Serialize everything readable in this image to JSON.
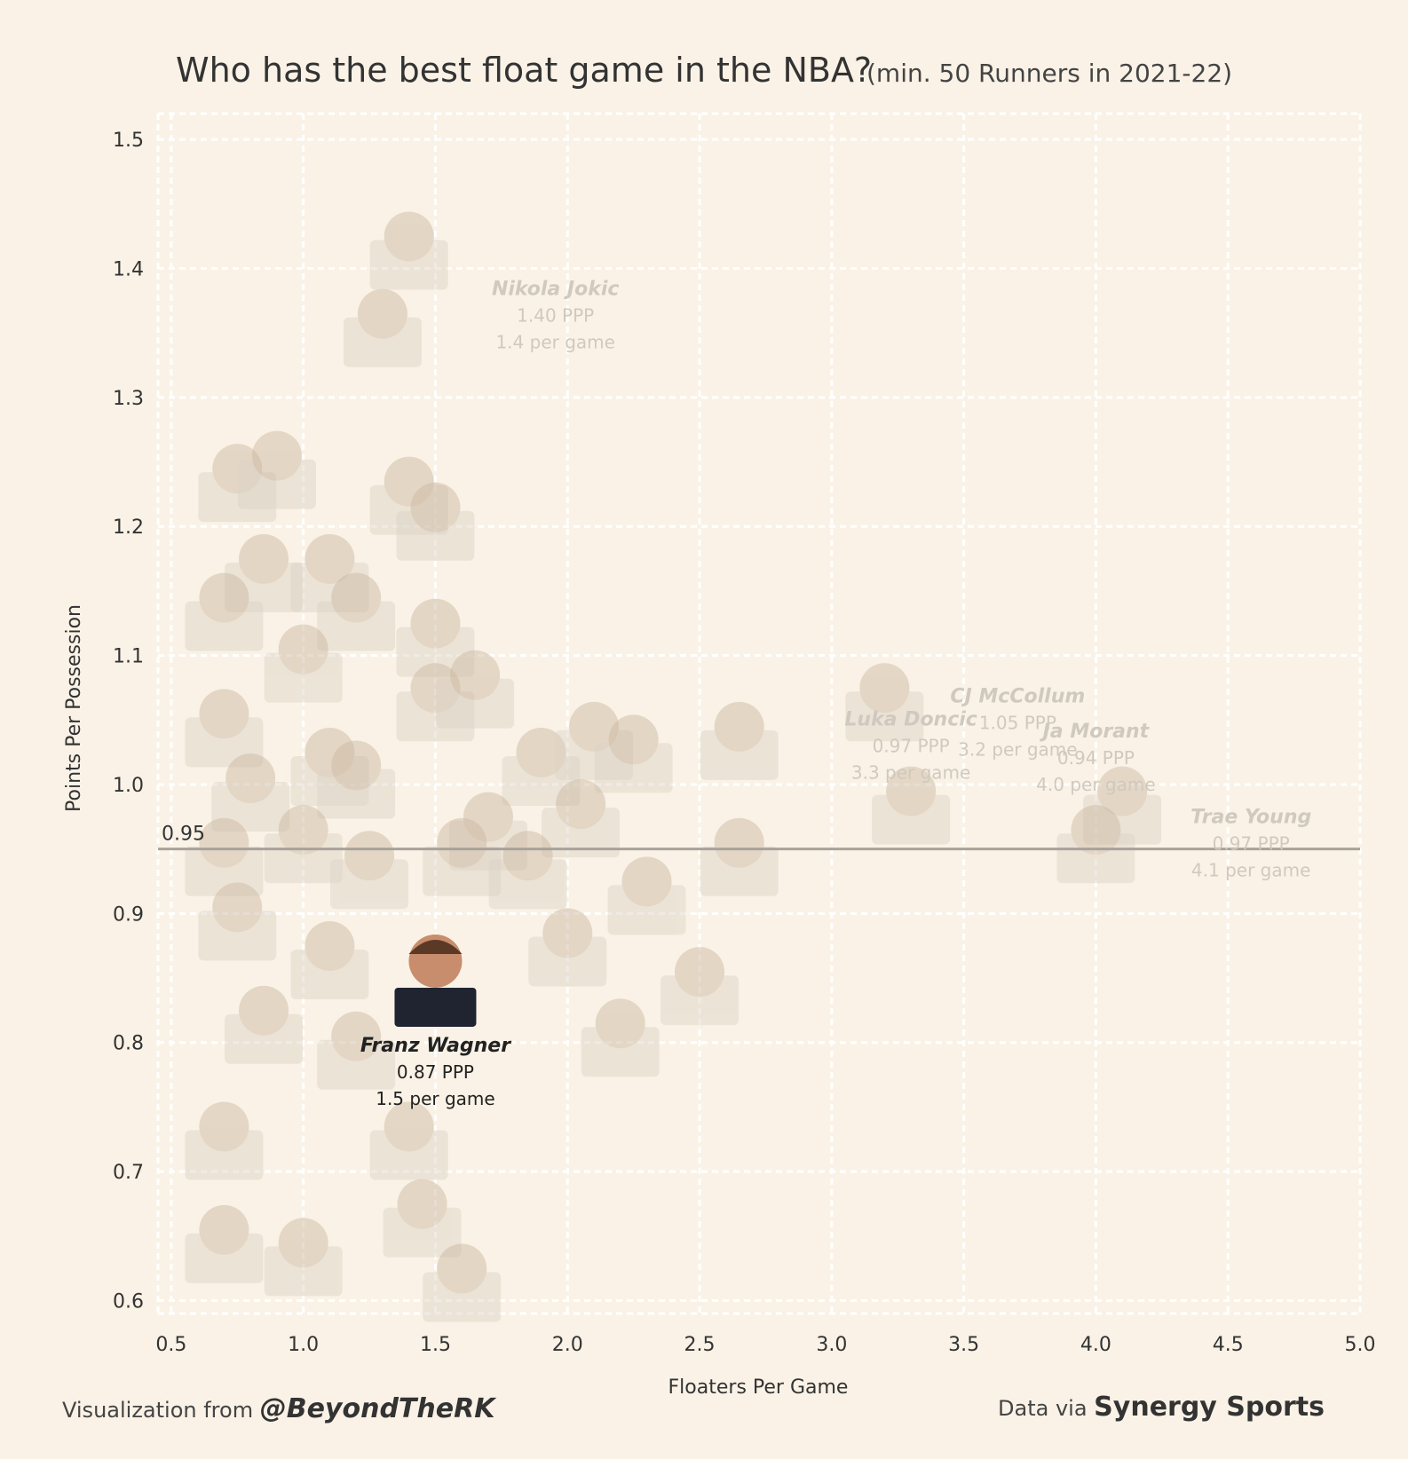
{
  "chart_data": {
    "type": "scatter",
    "title": "Who has the best float game in the NBA?",
    "subtitle": "(min. 50 Runners in 2021-22)",
    "xlabel": "Floaters Per Game",
    "ylabel": "Points Per Possession",
    "xlim": [
      0.45,
      5.0
    ],
    "ylim": [
      0.59,
      1.52
    ],
    "xticks": [
      "0.5",
      "1.0",
      "1.5",
      "2.0",
      "2.5",
      "3.0",
      "3.5",
      "4.0",
      "4.5",
      "5.0"
    ],
    "yticks": [
      "0.6",
      "0.7",
      "0.8",
      "0.9",
      "1.0",
      "1.1",
      "1.2",
      "1.3",
      "1.4",
      "1.5"
    ],
    "grid": true,
    "reference_line": {
      "value": 0.95,
      "label": "0.95"
    },
    "highlight": {
      "name": "Franz Wagner",
      "x": 1.5,
      "y": 0.87,
      "ppp": "0.87 PPP",
      "per_game": "1.5 per game"
    },
    "labeled_points": [
      {
        "name": "Nikola Jokic",
        "x": 1.4,
        "y": 1.4,
        "ppp": "1.40 PPP",
        "per_game": "1.4 per game"
      },
      {
        "name": "CJ McCollum",
        "x": 3.2,
        "y": 1.05,
        "ppp": "1.05 PPP",
        "per_game": "3.2 per game"
      },
      {
        "name": "Trae Young",
        "x": 4.1,
        "y": 0.97,
        "ppp": "0.97 PPP",
        "per_game": "4.1 per game"
      },
      {
        "name": "Luka Doncic",
        "x": 3.3,
        "y": 0.97,
        "ppp": "0.97 PPP",
        "per_game": "3.3 per game"
      },
      {
        "name": "Ja Morant",
        "x": 4.0,
        "y": 0.94,
        "ppp": "0.94 PPP",
        "per_game": "4.0 per game"
      }
    ],
    "other_points": [
      {
        "x": 1.3,
        "y": 1.34
      },
      {
        "x": 0.75,
        "y": 1.22
      },
      {
        "x": 0.9,
        "y": 1.23
      },
      {
        "x": 1.4,
        "y": 1.21
      },
      {
        "x": 1.5,
        "y": 1.19
      },
      {
        "x": 0.85,
        "y": 1.15
      },
      {
        "x": 1.1,
        "y": 1.15
      },
      {
        "x": 0.7,
        "y": 1.12
      },
      {
        "x": 1.2,
        "y": 1.12
      },
      {
        "x": 1.0,
        "y": 1.08
      },
      {
        "x": 1.5,
        "y": 1.1
      },
      {
        "x": 0.7,
        "y": 1.03
      },
      {
        "x": 1.5,
        "y": 1.05
      },
      {
        "x": 1.65,
        "y": 1.06
      },
      {
        "x": 0.8,
        "y": 0.98
      },
      {
        "x": 1.1,
        "y": 1.0
      },
      {
        "x": 1.2,
        "y": 0.99
      },
      {
        "x": 1.9,
        "y": 1.0
      },
      {
        "x": 2.1,
        "y": 1.02
      },
      {
        "x": 2.25,
        "y": 1.01
      },
      {
        "x": 2.65,
        "y": 1.02
      },
      {
        "x": 1.7,
        "y": 0.95
      },
      {
        "x": 2.05,
        "y": 0.96
      },
      {
        "x": 2.65,
        "y": 0.93
      },
      {
        "x": 0.7,
        "y": 0.93
      },
      {
        "x": 1.0,
        "y": 0.94
      },
      {
        "x": 1.25,
        "y": 0.92
      },
      {
        "x": 1.6,
        "y": 0.93
      },
      {
        "x": 1.85,
        "y": 0.92
      },
      {
        "x": 2.3,
        "y": 0.9
      },
      {
        "x": 0.75,
        "y": 0.88
      },
      {
        "x": 1.1,
        "y": 0.85
      },
      {
        "x": 2.0,
        "y": 0.86
      },
      {
        "x": 2.5,
        "y": 0.83
      },
      {
        "x": 0.85,
        "y": 0.8
      },
      {
        "x": 1.2,
        "y": 0.78
      },
      {
        "x": 2.2,
        "y": 0.79
      },
      {
        "x": 0.7,
        "y": 0.71
      },
      {
        "x": 1.4,
        "y": 0.71
      },
      {
        "x": 0.7,
        "y": 0.63
      },
      {
        "x": 1.0,
        "y": 0.62
      },
      {
        "x": 1.45,
        "y": 0.65
      },
      {
        "x": 1.6,
        "y": 0.6
      }
    ]
  },
  "footer": {
    "left_prefix": "Visualization from",
    "left_handle": "@BeyondTheRK",
    "right_prefix": "Data via",
    "right_source": "Synergy Sports"
  }
}
